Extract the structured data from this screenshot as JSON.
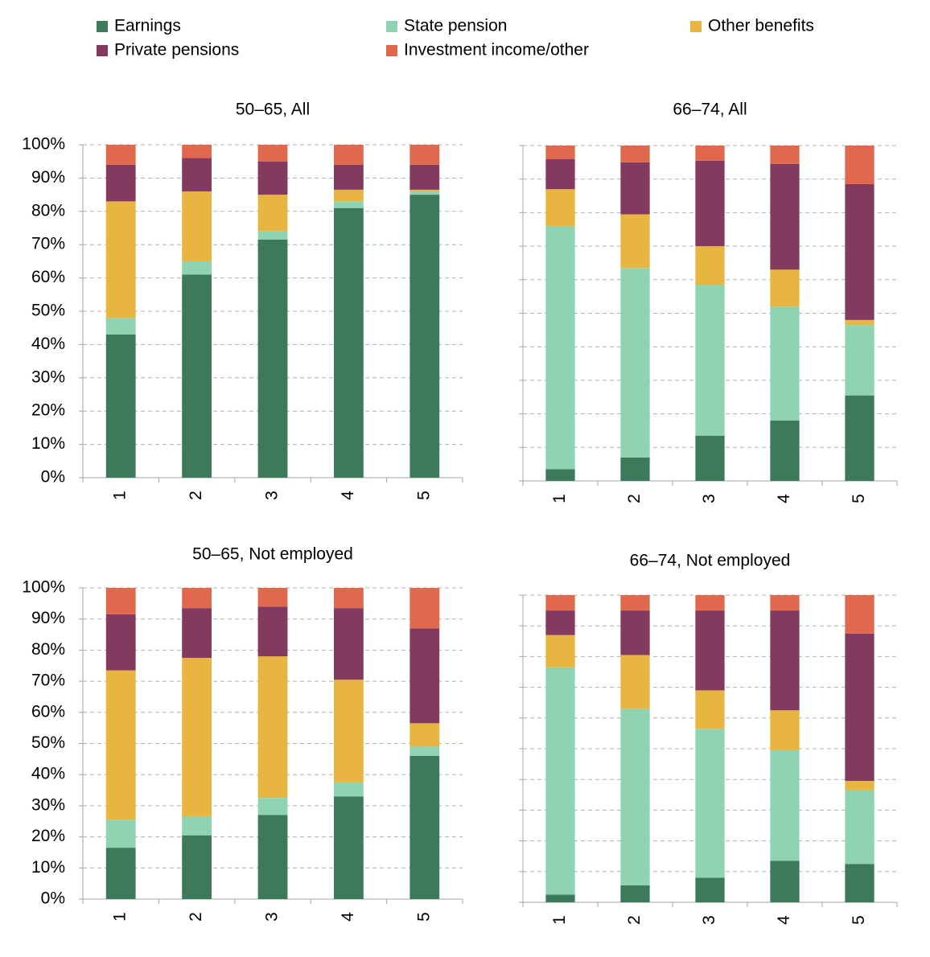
{
  "chart_data": [
    {
      "type": "stacked_bar",
      "title": "50–65, All",
      "categories": [
        "1",
        "2",
        "3",
        "4",
        "5"
      ],
      "series": [
        {
          "name": "Earnings",
          "color": "#3d7a5c",
          "values": [
            43,
            61,
            71.5,
            81,
            85
          ]
        },
        {
          "name": "State pension",
          "color": "#8fd3b3",
          "values": [
            5,
            4,
            2.5,
            2,
            1
          ]
        },
        {
          "name": "Other benefits",
          "color": "#e8b540",
          "values": [
            35,
            21,
            11,
            3.5,
            0.5
          ]
        },
        {
          "name": "Private pensions",
          "color": "#843a5e",
          "values": [
            11,
            10,
            10,
            7.5,
            7.5
          ]
        },
        {
          "name": "Investment income/other",
          "color": "#e0684c",
          "values": [
            6,
            4,
            5,
            6,
            6
          ]
        }
      ],
      "ylim": [
        0,
        100
      ],
      "ytick_labels": true,
      "yticks": [
        {
          "value": 0,
          "label": "0%"
        },
        {
          "value": 10,
          "label": "10%"
        },
        {
          "value": 20,
          "label": "20%"
        },
        {
          "value": 30,
          "label": "30%"
        },
        {
          "value": 40,
          "label": "40%"
        },
        {
          "value": 50,
          "label": "50%"
        },
        {
          "value": 60,
          "label": "60%"
        },
        {
          "value": 70,
          "label": "70%"
        },
        {
          "value": 80,
          "label": "80%"
        },
        {
          "value": 90,
          "label": "90%"
        },
        {
          "value": 100,
          "label": "100%"
        }
      ],
      "grid": true
    },
    {
      "type": "stacked_bar",
      "title": "66–74, All",
      "categories": [
        "1",
        "2",
        "3",
        "4",
        "5"
      ],
      "series": [
        {
          "name": "Earnings",
          "color": "#3d7a5c",
          "values": [
            3.5,
            7,
            13.5,
            18,
            25.5
          ]
        },
        {
          "name": "State pension",
          "color": "#8fd3b3",
          "values": [
            72.5,
            56.5,
            45,
            34,
            21
          ]
        },
        {
          "name": "Other benefits",
          "color": "#e8b540",
          "values": [
            11,
            16,
            11.5,
            11,
            1.5
          ]
        },
        {
          "name": "Private pensions",
          "color": "#843a5e",
          "values": [
            9,
            15.5,
            25.5,
            31.5,
            40.5
          ]
        },
        {
          "name": "Investment income/other",
          "color": "#e0684c",
          "values": [
            4,
            5,
            4.5,
            5.5,
            11.5
          ]
        }
      ],
      "ylim": [
        0,
        100
      ],
      "ytick_labels": false,
      "yticks": [
        0,
        10,
        20,
        30,
        40,
        50,
        60,
        70,
        80,
        90,
        100
      ],
      "grid": true
    },
    {
      "type": "stacked_bar",
      "title": "50–65, Not employed",
      "categories": [
        "1",
        "2",
        "3",
        "4",
        "5"
      ],
      "series": [
        {
          "name": "Earnings",
          "color": "#3d7a5c",
          "values": [
            16.5,
            20.5,
            27,
            33,
            46
          ]
        },
        {
          "name": "State pension",
          "color": "#8fd3b3",
          "values": [
            9,
            6,
            5.5,
            4.5,
            3
          ]
        },
        {
          "name": "Other benefits",
          "color": "#e8b540",
          "values": [
            48,
            51,
            45.5,
            33,
            7.5
          ]
        },
        {
          "name": "Private pensions",
          "color": "#843a5e",
          "values": [
            18,
            16,
            16,
            23,
            30.5
          ]
        },
        {
          "name": "Investment income/other",
          "color": "#e0684c",
          "values": [
            8.5,
            6.5,
            6,
            6.5,
            13
          ]
        }
      ],
      "ylim": [
        0,
        100
      ],
      "ytick_labels": true,
      "yticks": [
        {
          "value": 0,
          "label": "0%"
        },
        {
          "value": 10,
          "label": "10%"
        },
        {
          "value": 20,
          "label": "20%"
        },
        {
          "value": 30,
          "label": "30%"
        },
        {
          "value": 40,
          "label": "40%"
        },
        {
          "value": 50,
          "label": "50%"
        },
        {
          "value": 60,
          "label": "60%"
        },
        {
          "value": 70,
          "label": "70%"
        },
        {
          "value": 80,
          "label": "80%"
        },
        {
          "value": 90,
          "label": "90%"
        },
        {
          "value": 100,
          "label": "100%"
        }
      ],
      "grid": true
    },
    {
      "type": "stacked_bar",
      "title": "66–74, Not employed",
      "categories": [
        "1",
        "2",
        "3",
        "4",
        "5"
      ],
      "series": [
        {
          "name": "Earnings",
          "color": "#3d7a5c",
          "values": [
            2.5,
            5.5,
            8,
            13.5,
            12.5
          ]
        },
        {
          "name": "State pension",
          "color": "#8fd3b3",
          "values": [
            74,
            57.5,
            48.5,
            36,
            24
          ]
        },
        {
          "name": "Other benefits",
          "color": "#e8b540",
          "values": [
            10.5,
            17.5,
            12.5,
            13,
            3
          ]
        },
        {
          "name": "Private pensions",
          "color": "#843a5e",
          "values": [
            8,
            14.5,
            26,
            32.5,
            48
          ]
        },
        {
          "name": "Investment income/other",
          "color": "#e0684c",
          "values": [
            5,
            5,
            5,
            5,
            12.5
          ]
        }
      ],
      "ylim": [
        0,
        100
      ],
      "ytick_labels": false,
      "yticks": [
        0,
        10,
        20,
        30,
        40,
        50,
        60,
        70,
        80,
        90,
        100
      ],
      "grid": true
    }
  ]
}
